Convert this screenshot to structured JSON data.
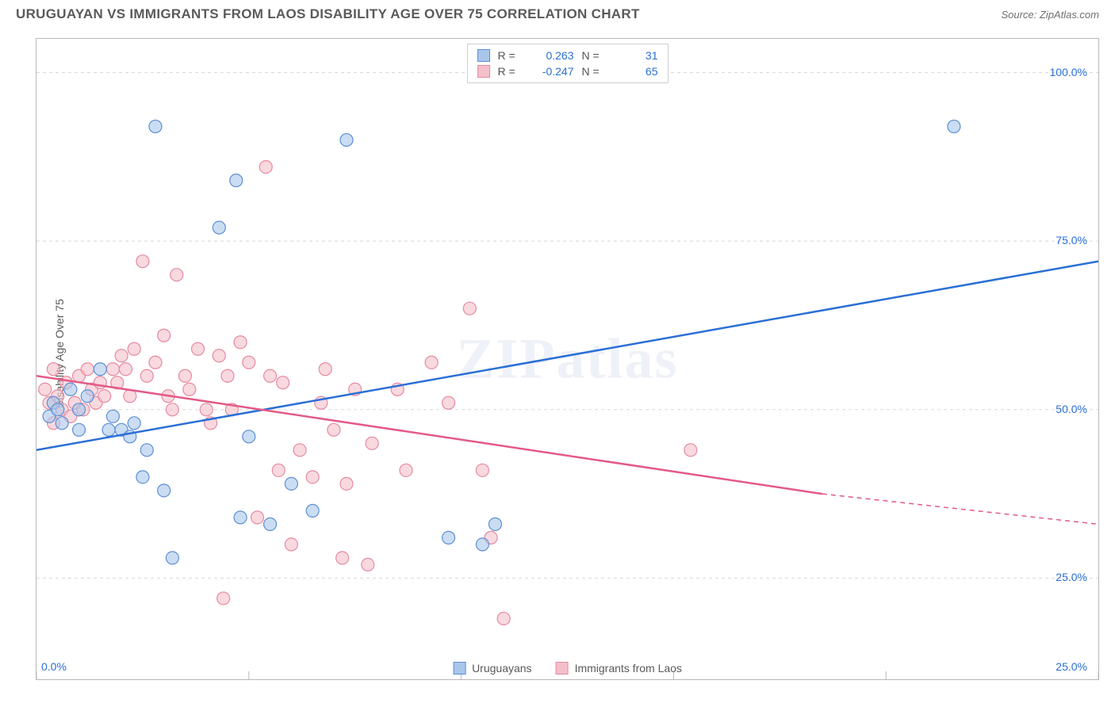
{
  "header": {
    "title": "URUGUAYAN VS IMMIGRANTS FROM LAOS DISABILITY AGE OVER 75 CORRELATION CHART",
    "source_prefix": "Source: ",
    "source_name": "ZipAtlas.com"
  },
  "ylabel": "Disability Age Over 75",
  "watermark": "ZIPatlas",
  "colors": {
    "series_a_fill": "#a8c6ea",
    "series_a_stroke": "#5c8fd6",
    "series_b_fill": "#f4bfca",
    "series_b_stroke": "#e68aa0",
    "trend_a": "#2a6fd6",
    "trend_b": "#e35a86",
    "grid": "#d8d8d8",
    "border": "#b8b8b8",
    "tick_text": "#2a6fd6",
    "text": "#5a5a5a",
    "bg": "#ffffff"
  },
  "chart": {
    "type": "scatter",
    "xlim": [
      0,
      25
    ],
    "ylim": [
      10,
      105
    ],
    "x_ticks": [
      0,
      5,
      10,
      15,
      20,
      25
    ],
    "y_ticks": [
      25,
      50,
      75,
      100
    ],
    "x_tick_labels": [
      "0.0%",
      "",
      "",
      "",
      "",
      "25.0%"
    ],
    "y_tick_labels": [
      "25.0%",
      "50.0%",
      "75.0%",
      "100.0%"
    ],
    "marker_radius": 8,
    "marker_opacity": 0.6,
    "line_width": 2.5,
    "grid_dash": "4,4"
  },
  "legend_top": {
    "rows": [
      {
        "swatch": "a",
        "r_label": "R =",
        "r_value": "0.263",
        "n_label": "N =",
        "n_value": "31"
      },
      {
        "swatch": "b",
        "r_label": "R =",
        "r_value": "-0.247",
        "n_label": "N =",
        "n_value": "65"
      }
    ]
  },
  "legend_bottom": {
    "items": [
      {
        "swatch": "a",
        "label": "Uruguayans"
      },
      {
        "swatch": "b",
        "label": "Immigrants from Laos"
      }
    ]
  },
  "series_a": {
    "points": [
      [
        0.3,
        49
      ],
      [
        0.4,
        51
      ],
      [
        0.5,
        50
      ],
      [
        0.6,
        48
      ],
      [
        0.8,
        53
      ],
      [
        1.0,
        47
      ],
      [
        1.2,
        52
      ],
      [
        1.5,
        56
      ],
      [
        1.7,
        47
      ],
      [
        1.8,
        49
      ],
      [
        2.0,
        47
      ],
      [
        2.2,
        46
      ],
      [
        2.3,
        48
      ],
      [
        2.5,
        40
      ],
      [
        2.6,
        44
      ],
      [
        2.8,
        92
      ],
      [
        3.0,
        38
      ],
      [
        3.2,
        28
      ],
      [
        4.3,
        77
      ],
      [
        4.7,
        84
      ],
      [
        4.8,
        34
      ],
      [
        5.0,
        46
      ],
      [
        5.5,
        33
      ],
      [
        6.0,
        39
      ],
      [
        6.5,
        35
      ],
      [
        7.3,
        90
      ],
      [
        9.7,
        31
      ],
      [
        10.5,
        30
      ],
      [
        10.8,
        33
      ],
      [
        21.6,
        92
      ],
      [
        1.0,
        50
      ]
    ],
    "trend": {
      "x1": 0,
      "y1": 44,
      "x2": 25,
      "y2": 72
    }
  },
  "series_b": {
    "points": [
      [
        0.2,
        53
      ],
      [
        0.3,
        51
      ],
      [
        0.4,
        56
      ],
      [
        0.5,
        52
      ],
      [
        0.6,
        50
      ],
      [
        0.7,
        54
      ],
      [
        0.8,
        49
      ],
      [
        0.9,
        51
      ],
      [
        1.0,
        55
      ],
      [
        1.1,
        50
      ],
      [
        1.2,
        56
      ],
      [
        1.3,
        53
      ],
      [
        1.4,
        51
      ],
      [
        1.5,
        54
      ],
      [
        1.6,
        52
      ],
      [
        1.8,
        56
      ],
      [
        2.0,
        58
      ],
      [
        2.2,
        52
      ],
      [
        2.3,
        59
      ],
      [
        2.5,
        72
      ],
      [
        2.6,
        55
      ],
      [
        2.8,
        57
      ],
      [
        3.0,
        61
      ],
      [
        3.2,
        50
      ],
      [
        3.3,
        70
      ],
      [
        3.5,
        55
      ],
      [
        3.6,
        53
      ],
      [
        3.8,
        59
      ],
      [
        4.0,
        50
      ],
      [
        4.1,
        48
      ],
      [
        4.3,
        58
      ],
      [
        4.4,
        22
      ],
      [
        4.5,
        55
      ],
      [
        4.8,
        60
      ],
      [
        5.0,
        57
      ],
      [
        5.2,
        34
      ],
      [
        5.4,
        86
      ],
      [
        5.5,
        55
      ],
      [
        5.7,
        41
      ],
      [
        5.8,
        54
      ],
      [
        6.0,
        30
      ],
      [
        6.2,
        44
      ],
      [
        6.5,
        40
      ],
      [
        6.7,
        51
      ],
      [
        6.8,
        56
      ],
      [
        7.0,
        47
      ],
      [
        7.2,
        28
      ],
      [
        7.3,
        39
      ],
      [
        7.5,
        53
      ],
      [
        7.8,
        27
      ],
      [
        7.9,
        45
      ],
      [
        8.5,
        53
      ],
      [
        8.7,
        41
      ],
      [
        9.3,
        57
      ],
      [
        9.7,
        51
      ],
      [
        10.2,
        65
      ],
      [
        10.5,
        41
      ],
      [
        10.7,
        31
      ],
      [
        11.0,
        19
      ],
      [
        15.4,
        44
      ],
      [
        1.9,
        54
      ],
      [
        2.1,
        56
      ],
      [
        3.1,
        52
      ],
      [
        4.6,
        50
      ],
      [
        0.4,
        48
      ]
    ],
    "trend_solid": {
      "x1": 0,
      "y1": 55,
      "x2": 18.5,
      "y2": 37.5
    },
    "trend_dash": {
      "x1": 18.5,
      "y1": 37.5,
      "x2": 25,
      "y2": 33
    }
  }
}
